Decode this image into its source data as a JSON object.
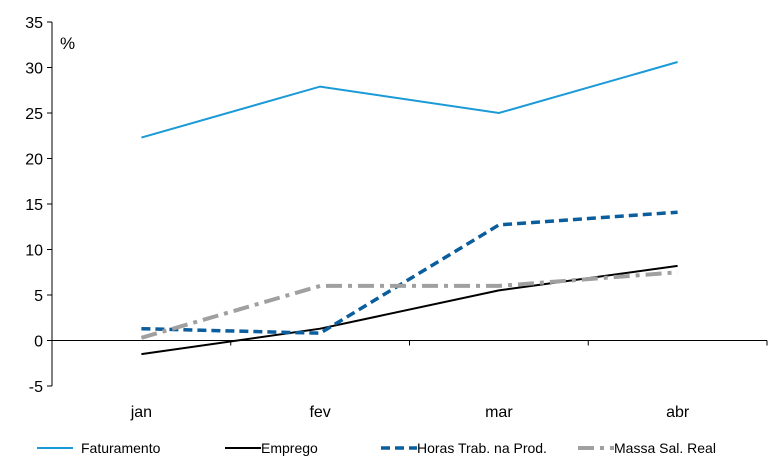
{
  "chart_data": {
    "type": "line",
    "title": "",
    "xlabel": "",
    "ylabel": "",
    "unit_label": "%",
    "categories": [
      "jan",
      "fev",
      "mar",
      "abr"
    ],
    "ylim": [
      -5,
      35
    ],
    "yticks": [
      -5,
      0,
      5,
      10,
      15,
      20,
      25,
      30,
      35
    ],
    "grid": false,
    "legend_position": "bottom",
    "series": [
      {
        "name": "Faturamento",
        "values": [
          22.3,
          27.9,
          25.0,
          30.6
        ],
        "color": "#1a9ad6",
        "dash": "solid"
      },
      {
        "name": "Emprego",
        "values": [
          -1.5,
          1.3,
          5.5,
          8.2
        ],
        "color": "#000000",
        "dash": "solid"
      },
      {
        "name": "Horas Trab. na Prod.",
        "values": [
          1.3,
          0.8,
          12.7,
          14.1
        ],
        "color": "#0b5e9e",
        "dash": "dashed"
      },
      {
        "name": "Massa Sal. Real",
        "values": [
          0.3,
          6.0,
          6.0,
          7.5
        ],
        "color": "#a0a0a0",
        "dash": "dashdot"
      }
    ]
  }
}
